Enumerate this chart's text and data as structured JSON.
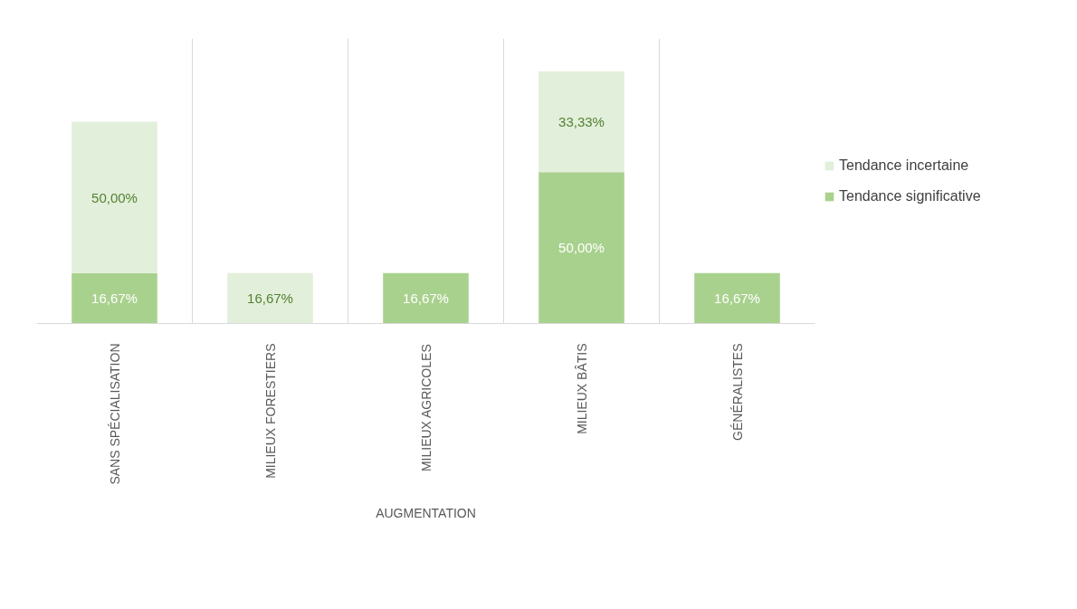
{
  "chart_data": {
    "type": "bar",
    "stacked": true,
    "xlabel": "AUGMENTATION",
    "categories": [
      "SANS SPÉCIALISATION",
      "MILIEUX FORESTIERS",
      "MILIEUX AGRICOLES",
      "MILIEUX BÂTIS",
      "GÉNÉRALISTES"
    ],
    "series": [
      {
        "name": "Tendance significative",
        "color": "#a9d18e",
        "values": [
          16.67,
          null,
          16.67,
          50.0,
          16.67
        ],
        "value_labels": [
          "16,67%",
          null,
          "16,67%",
          "50,00%",
          "16,67%"
        ]
      },
      {
        "name": "Tendance incertaine",
        "color": "#e2efda",
        "values": [
          50.0,
          16.67,
          null,
          33.33,
          null
        ],
        "value_labels": [
          "50,00%",
          "16,67%",
          null,
          "33,33%",
          null
        ]
      }
    ],
    "grid": "x",
    "legend": "right",
    "tick_labels": "x"
  }
}
